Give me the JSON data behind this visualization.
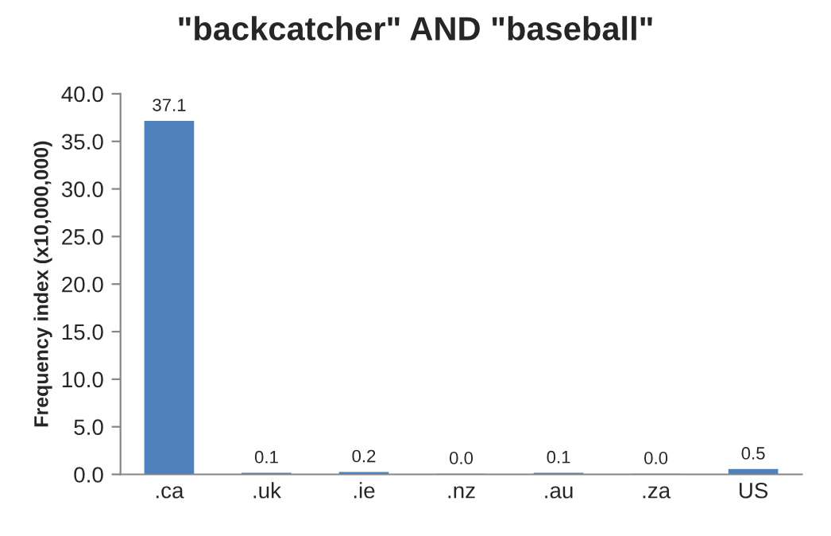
{
  "chart_data": {
    "type": "bar",
    "title": "\"backcatcher\" AND \"baseball\"",
    "ylabel": "Frequency index (x10,000,000)",
    "categories": [
      ".ca",
      ".uk",
      ".ie",
      ".nz",
      ".au",
      ".za",
      "US"
    ],
    "values": [
      37.1,
      0.1,
      0.2,
      0.0,
      0.1,
      0.0,
      0.5
    ],
    "value_labels": [
      "37.1",
      "0.1",
      "0.2",
      "0.0",
      "0.1",
      "0.0",
      "0.5"
    ],
    "color": "#4f81bd",
    "ylim": [
      0,
      40
    ],
    "yticks": [
      {
        "value": 0,
        "label": "0.0"
      },
      {
        "value": 5,
        "label": "5.0"
      },
      {
        "value": 10,
        "label": "10.0"
      },
      {
        "value": 15,
        "label": "15.0"
      },
      {
        "value": 20,
        "label": "20.0"
      },
      {
        "value": 25,
        "label": "25.0"
      },
      {
        "value": 30,
        "label": "30.0"
      },
      {
        "value": 35,
        "label": "35.0"
      },
      {
        "value": 40,
        "label": "40.0"
      }
    ],
    "grid": false,
    "legend": false
  }
}
